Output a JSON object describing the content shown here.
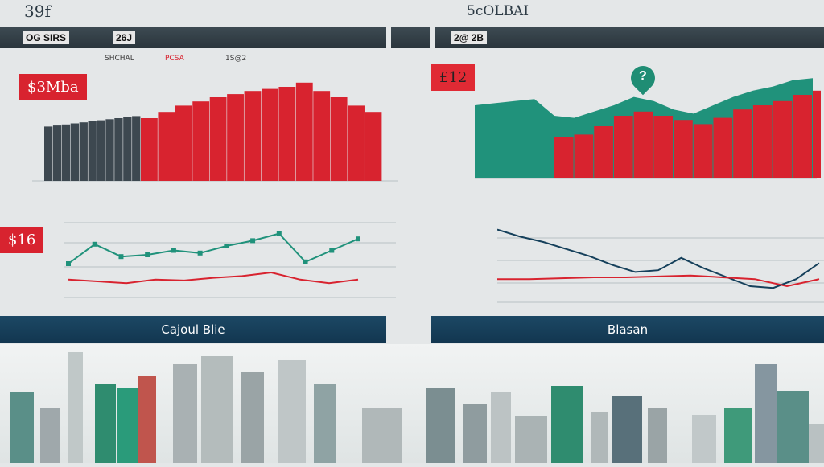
{
  "header": {
    "left_number": "39f",
    "right_title": "5cOLBAI",
    "left_bar_label_a": "OG SIRS",
    "left_bar_label_b": "26J",
    "right_bar_label": "2@ 2B"
  },
  "panels": {
    "top_left": {
      "tag": "$3Mba",
      "axis_note_a": "SHCHAL",
      "axis_note_b": "PCSA",
      "axis_note_c": "1S@2"
    },
    "top_right": {
      "tag": "£12",
      "marker": "?"
    },
    "mid_left": {
      "tag": "$16"
    },
    "band_left": "Cajoul Blie",
    "band_right": "Blasan"
  },
  "colors": {
    "red": "#d8232f",
    "green": "#20927b",
    "dark": "#3d4850",
    "navy": "#15405b"
  },
  "chart_data": [
    {
      "type": "area",
      "series": [
        {
          "values": [
            52,
            53,
            54,
            55,
            56,
            57,
            58,
            59,
            60,
            61,
            62
          ]
        },
        {
          "values": [
            60,
            66,
            72,
            76,
            80,
            83,
            86,
            88,
            90,
            94,
            86,
            80,
            72,
            66
          ]
        }
      ]
    },
    {
      "type": "area",
      "series": [
        {
          "values": [
            70,
            72,
            74,
            76,
            60,
            58,
            64,
            70,
            78,
            74,
            66,
            62,
            70,
            78,
            84,
            88,
            94,
            96
          ]
        },
        {
          "values": [
            0,
            0,
            0,
            0,
            40,
            42,
            50,
            60,
            64,
            60,
            56,
            52,
            58,
            66,
            70,
            74,
            80,
            84
          ]
        }
      ]
    },
    {
      "type": "line",
      "series": [
        {
          "values": [
            40,
            62,
            48,
            50,
            55,
            52,
            60,
            66,
            74,
            42,
            55,
            68
          ]
        },
        {
          "values": [
            22,
            20,
            18,
            22,
            21,
            24,
            26,
            30,
            22,
            18,
            22
          ]
        }
      ]
    },
    {
      "type": "line",
      "series": [
        {
          "values": [
            84,
            76,
            70,
            62,
            54,
            44,
            36,
            38,
            52,
            40,
            30,
            20,
            18,
            28,
            46
          ]
        },
        {
          "values": [
            28,
            28,
            29,
            30,
            30,
            31,
            32,
            30,
            28,
            20,
            28
          ]
        }
      ]
    }
  ]
}
